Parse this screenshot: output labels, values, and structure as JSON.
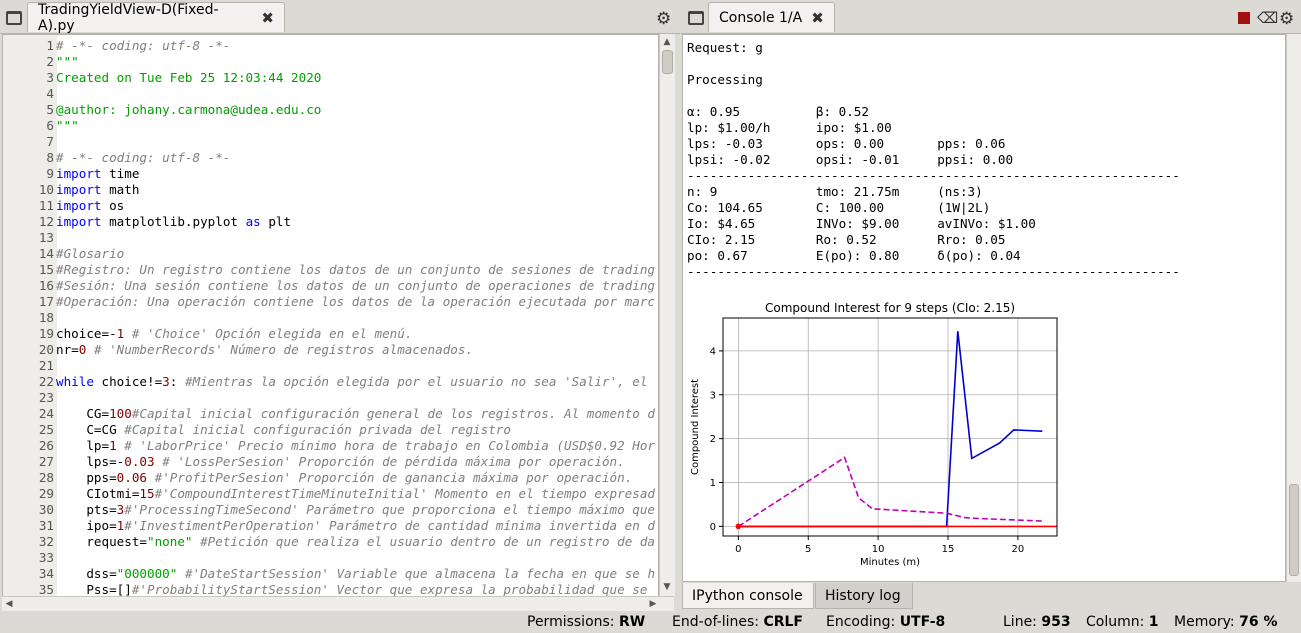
{
  "editor": {
    "tab_title": "TradingYieldView-D(Fixed-A).py",
    "lines": [
      {
        "n": "1",
        "tokens": [
          [
            "cm",
            "# -*- coding: utf-8 -*-"
          ]
        ]
      },
      {
        "n": "2",
        "tokens": [
          [
            "str",
            "\"\"\""
          ]
        ]
      },
      {
        "n": "3",
        "tokens": [
          [
            "str",
            "Created on Tue Feb 25 12:03:44 2020"
          ]
        ]
      },
      {
        "n": "4",
        "tokens": []
      },
      {
        "n": "5",
        "tokens": [
          [
            "str",
            "@author: johany.carmona@udea.edu.co"
          ]
        ]
      },
      {
        "n": "6",
        "tokens": [
          [
            "str",
            "\"\"\""
          ]
        ]
      },
      {
        "n": "7",
        "tokens": []
      },
      {
        "n": "8",
        "tokens": [
          [
            "cm",
            "# -*- coding: utf-8 -*-"
          ]
        ]
      },
      {
        "n": "9",
        "tokens": [
          [
            "kw",
            "import"
          ],
          [
            "plain",
            " time"
          ]
        ]
      },
      {
        "n": "10",
        "tokens": [
          [
            "kw",
            "import"
          ],
          [
            "plain",
            " math"
          ]
        ]
      },
      {
        "n": "11",
        "tokens": [
          [
            "kw",
            "import"
          ],
          [
            "plain",
            " os"
          ]
        ]
      },
      {
        "n": "12",
        "tokens": [
          [
            "kw",
            "import"
          ],
          [
            "plain",
            " matplotlib.pyplot "
          ],
          [
            "kw",
            "as"
          ],
          [
            "plain",
            " plt"
          ]
        ]
      },
      {
        "n": "13",
        "tokens": []
      },
      {
        "n": "14",
        "tokens": [
          [
            "cm",
            "#Glosario"
          ]
        ]
      },
      {
        "n": "15",
        "tokens": [
          [
            "cm",
            "#Registro: Un registro contiene los datos de un conjunto de sesiones de trading"
          ]
        ]
      },
      {
        "n": "16",
        "tokens": [
          [
            "cm",
            "#Sesión: Una sesión contiene los datos de un conjunto de operaciones de trading"
          ]
        ]
      },
      {
        "n": "17",
        "tokens": [
          [
            "cm",
            "#Operación: Una operación contiene los datos de la operación ejecutada por marc"
          ]
        ]
      },
      {
        "n": "18",
        "tokens": []
      },
      {
        "n": "19",
        "tokens": [
          [
            "plain",
            "choice=-"
          ],
          [
            "num",
            "1"
          ],
          [
            "plain",
            " "
          ],
          [
            "cm",
            "# 'Choice' Opción elegida en el menú."
          ]
        ]
      },
      {
        "n": "20",
        "tokens": [
          [
            "plain",
            "nr="
          ],
          [
            "num",
            "0"
          ],
          [
            "plain",
            " "
          ],
          [
            "cm",
            "# 'NumberRecords' Número de registros almacenados."
          ]
        ]
      },
      {
        "n": "21",
        "tokens": []
      },
      {
        "n": "22",
        "tokens": [
          [
            "kw",
            "while"
          ],
          [
            "plain",
            " choice!="
          ],
          [
            "num",
            "3"
          ],
          [
            "plain",
            ": "
          ],
          [
            "cm",
            "#Mientras la opción elegida por el usuario no sea 'Salir', el"
          ]
        ]
      },
      {
        "n": "23",
        "tokens": []
      },
      {
        "n": "24",
        "tokens": [
          [
            "plain",
            "    CG="
          ],
          [
            "num",
            "100"
          ],
          [
            "cm",
            "#Capital inicial configuración general de los registros. Al momento d"
          ]
        ]
      },
      {
        "n": "25",
        "tokens": [
          [
            "plain",
            "    C=CG "
          ],
          [
            "cm",
            "#Capital inicial configuración privada del registro"
          ]
        ]
      },
      {
        "n": "26",
        "tokens": [
          [
            "plain",
            "    lp="
          ],
          [
            "num",
            "1"
          ],
          [
            "plain",
            " "
          ],
          [
            "cm",
            "# 'LaborPrice' Precio mínimo hora de trabajo en Colombia (USD$0.92 Hor"
          ]
        ]
      },
      {
        "n": "27",
        "tokens": [
          [
            "plain",
            "    lps=-"
          ],
          [
            "num",
            "0.03"
          ],
          [
            "plain",
            " "
          ],
          [
            "cm",
            "# 'LossPerSesion' Proporción de pérdida máxima por operación."
          ]
        ]
      },
      {
        "n": "28",
        "tokens": [
          [
            "plain",
            "    pps="
          ],
          [
            "num",
            "0.06"
          ],
          [
            "plain",
            " "
          ],
          [
            "cm",
            "#'ProfitPerSesion' Proporción de ganancia máxima por operación."
          ]
        ]
      },
      {
        "n": "29",
        "tokens": [
          [
            "plain",
            "    CIotmi="
          ],
          [
            "num",
            "15"
          ],
          [
            "cm",
            "#'CompoundInterestTimeMinuteInitial' Momento en el tiempo expresad"
          ]
        ]
      },
      {
        "n": "30",
        "tokens": [
          [
            "plain",
            "    pts="
          ],
          [
            "num",
            "3"
          ],
          [
            "cm",
            "#'ProcessingTimeSecond' Parámetro que proporciona el tiempo máximo que"
          ]
        ]
      },
      {
        "n": "31",
        "tokens": [
          [
            "plain",
            "    ipo="
          ],
          [
            "num",
            "1"
          ],
          [
            "cm",
            "#'InvestimentPerOperation' Parámetro de cantidad mínima invertida en d"
          ]
        ]
      },
      {
        "n": "32",
        "tokens": [
          [
            "plain",
            "    request="
          ],
          [
            "str",
            "\"none\""
          ],
          [
            "plain",
            " "
          ],
          [
            "cm",
            "#Petición que realiza el usuario dentro de un registro de da"
          ]
        ]
      },
      {
        "n": "33",
        "tokens": []
      },
      {
        "n": "34",
        "tokens": [
          [
            "plain",
            "    dss="
          ],
          [
            "str",
            "\"000000\""
          ],
          [
            "plain",
            " "
          ],
          [
            "cm",
            "#'DateStartSession' Variable que almacena la fecha en que se h"
          ]
        ]
      },
      {
        "n": "35",
        "tokens": [
          [
            "plain",
            "    Pss=[]"
          ],
          [
            "cm",
            "#'ProbabilityStartSession' Vector que expresa la probabilidad que se"
          ]
        ]
      }
    ]
  },
  "console": {
    "tab_title": "Console 1/A",
    "lines": [
      "Request: g",
      "",
      "Processing",
      "",
      "α: 0.95          β: 0.52",
      "lp: $1.00/h      ipo: $1.00",
      "lps: -0.03       ops: 0.00       pps: 0.06",
      "lpsi: -0.02      opsi: -0.01     ppsi: 0.00",
      "-----------------------------------------------------------------",
      "n: 9             tmo: 21.75m     (ns:3)",
      "Co: 104.65       C: 100.00       (1W|2L)",
      "Io: $4.65        INVo: $9.00     avINVo: $1.00",
      "CIo: 2.15        Ro: 0.52        Rro: 0.05",
      "po: 0.67         E(po): 0.80     δ(po): 0.04",
      "-----------------------------------------------------------------"
    ],
    "bottom_tabs": [
      "IPython console",
      "History log"
    ]
  },
  "chart_data": {
    "type": "line",
    "title": "Compound Interest for 9 steps (CIo: 2.15)",
    "xlabel": "Minutes (m)",
    "ylabel": "Compound Interest",
    "xlim": [
      -1.1,
      22.8
    ],
    "ylim": [
      -0.22,
      4.75
    ],
    "xticks": [
      0,
      5,
      10,
      15,
      20
    ],
    "yticks": [
      0,
      1,
      2,
      3,
      4
    ],
    "grid": true,
    "series": [
      {
        "color": "#0000cc",
        "style": "solid",
        "x": [
          0,
          14.9,
          15.7,
          16.7,
          18.7,
          19.7,
          21.75
        ],
        "y": [
          0,
          0,
          4.45,
          1.55,
          1.9,
          2.2,
          2.17
        ]
      },
      {
        "color": "#bf00bf",
        "style": "dashed",
        "x": [
          0,
          7.6,
          8.6,
          9.6,
          14.9,
          16.2,
          17.2,
          21.75
        ],
        "y": [
          0,
          1.57,
          0.65,
          0.4,
          0.3,
          0.2,
          0.18,
          0.12
        ]
      },
      {
        "color": "#ff0000",
        "style": "solid",
        "x": [
          0,
          22.8
        ],
        "y": [
          0,
          0
        ]
      }
    ],
    "marker": {
      "x": 0,
      "y": 0,
      "color": "#ff0000"
    }
  },
  "statusbar": {
    "permissions_label": "Permissions:",
    "permissions_value": "RW",
    "eol_label": "End-of-lines:",
    "eol_value": "CRLF",
    "encoding_label": "Encoding:",
    "encoding_value": "UTF-8",
    "line_label": "Line:",
    "line_value": "953",
    "column_label": "Column:",
    "column_value": "1",
    "memory_label": "Memory:",
    "memory_value": "76 %"
  },
  "colors": {
    "stop_button": "#a01010"
  }
}
